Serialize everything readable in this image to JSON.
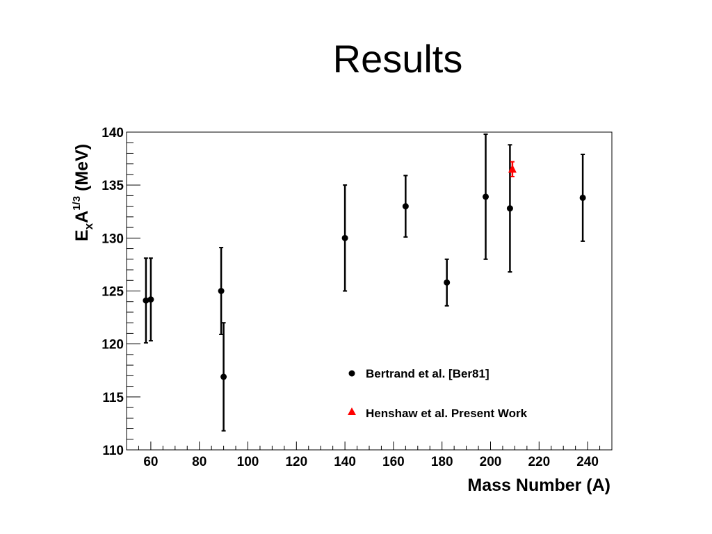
{
  "slide": {
    "title": "Results"
  },
  "chart_data": {
    "type": "scatter",
    "xlabel": "Mass Number (A)",
    "ylabel": {
      "E": "E",
      "sub": "x",
      "A": "A",
      "sup": "1/3",
      "unit": " (MeV)"
    },
    "xlim": [
      50,
      250
    ],
    "ylim": [
      110,
      140
    ],
    "xticks": [
      60,
      80,
      100,
      120,
      140,
      160,
      180,
      200,
      220,
      240
    ],
    "yticks": [
      110,
      115,
      120,
      125,
      130,
      135,
      140
    ],
    "legend_position": "lower-right",
    "grid": false,
    "series": [
      {
        "name": "Bertrand et al. [Ber81]",
        "marker": "circle",
        "color": "#000000",
        "points": [
          {
            "x": 58,
            "y": 124.1,
            "err": 4.0
          },
          {
            "x": 60,
            "y": 124.2,
            "err": 3.9
          },
          {
            "x": 89,
            "y": 125.0,
            "err": 4.1
          },
          {
            "x": 90,
            "y": 116.9,
            "err": 5.1
          },
          {
            "x": 140,
            "y": 130.0,
            "err": 5.0
          },
          {
            "x": 165,
            "y": 133.0,
            "err": 2.9
          },
          {
            "x": 182,
            "y": 125.8,
            "err": 2.2
          },
          {
            "x": 198,
            "y": 133.9,
            "err": 5.9
          },
          {
            "x": 208,
            "y": 132.8,
            "err": 6.0
          },
          {
            "x": 238,
            "y": 133.8,
            "err": 4.1
          }
        ]
      },
      {
        "name": "Henshaw et al. Present Work",
        "marker": "triangle",
        "color": "#ff0000",
        "points": [
          {
            "x": 209,
            "y": 136.5,
            "err": 0.7
          }
        ]
      }
    ]
  }
}
